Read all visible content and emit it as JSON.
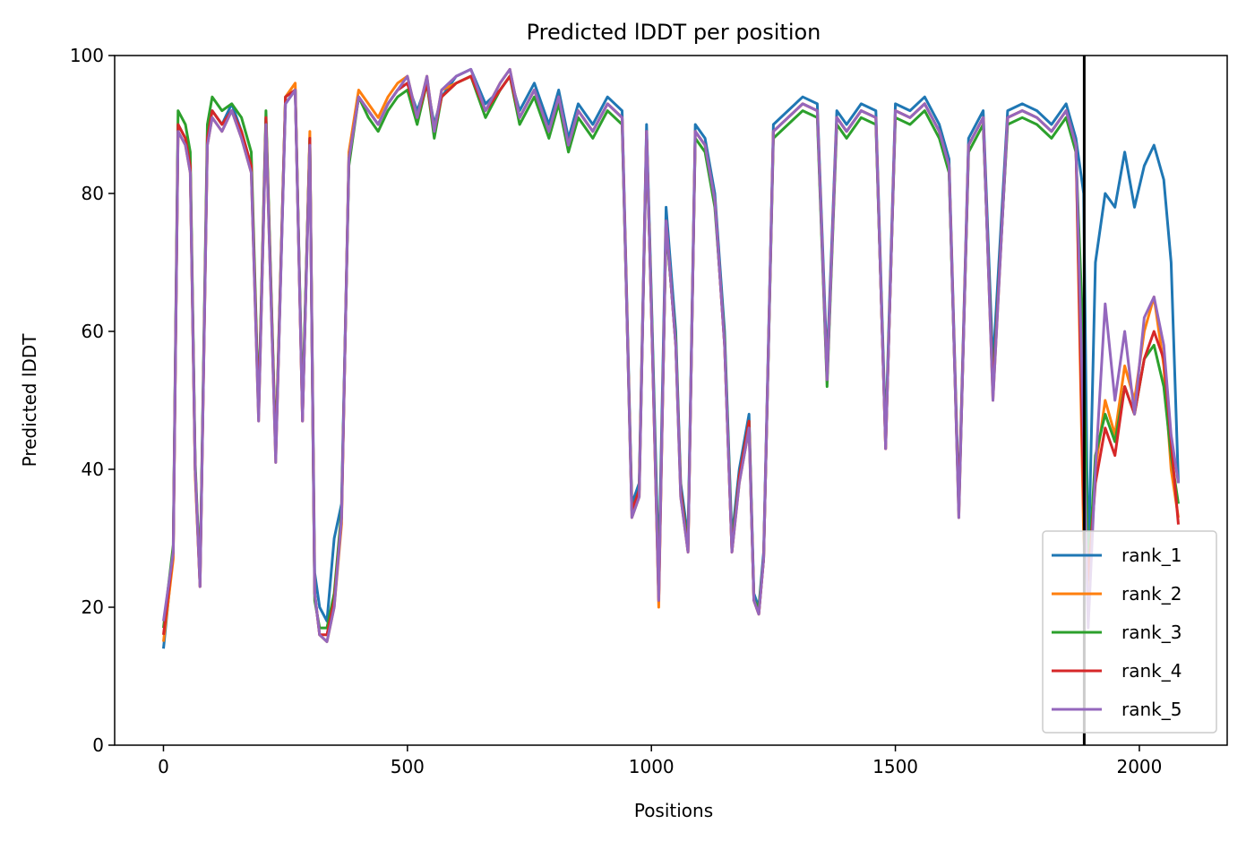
{
  "chart_data": {
    "type": "line",
    "title": "Predicted lDDT per position",
    "xlabel": "Positions",
    "ylabel": "Predicted lDDT",
    "xlim": [
      -100,
      2180
    ],
    "ylim": [
      0,
      100
    ],
    "xticks": [
      0,
      500,
      1000,
      1500,
      2000
    ],
    "yticks": [
      0,
      20,
      40,
      60,
      80,
      100
    ],
    "grid": false,
    "legend_position": "lower-right",
    "vertical_line": {
      "x": 1887,
      "color": "#000000"
    },
    "series_colors": [
      "#1f77b4",
      "#ff7f0e",
      "#2ca02c",
      "#d62728",
      "#9467bd"
    ],
    "x": [
      0,
      20,
      30,
      45,
      55,
      65,
      75,
      90,
      100,
      120,
      140,
      160,
      180,
      195,
      210,
      230,
      250,
      270,
      285,
      300,
      310,
      320,
      335,
      350,
      365,
      380,
      400,
      420,
      440,
      460,
      480,
      500,
      520,
      540,
      555,
      570,
      600,
      630,
      660,
      690,
      710,
      730,
      760,
      790,
      810,
      830,
      850,
      880,
      910,
      940,
      960,
      975,
      990,
      1000,
      1015,
      1030,
      1050,
      1060,
      1075,
      1090,
      1110,
      1130,
      1150,
      1165,
      1180,
      1200,
      1210,
      1220,
      1230,
      1250,
      1280,
      1310,
      1340,
      1360,
      1380,
      1400,
      1430,
      1460,
      1480,
      1500,
      1530,
      1560,
      1590,
      1610,
      1630,
      1650,
      1680,
      1700,
      1730,
      1760,
      1790,
      1820,
      1850,
      1870,
      1886,
      1895,
      1910,
      1930,
      1950,
      1970,
      1990,
      2010,
      2030,
      2050,
      2065,
      2080
    ],
    "series": [
      {
        "name": "rank_1",
        "values": [
          14,
          28,
          90,
          88,
          84,
          40,
          24,
          88,
          92,
          90,
          93,
          89,
          84,
          48,
          91,
          42,
          93,
          95,
          48,
          88,
          25,
          20,
          18,
          30,
          35,
          85,
          94,
          92,
          90,
          93,
          95,
          96,
          92,
          96,
          90,
          94,
          97,
          98,
          93,
          95,
          97,
          92,
          96,
          90,
          95,
          88,
          93,
          90,
          94,
          92,
          35,
          38,
          90,
          65,
          25,
          78,
          60,
          38,
          30,
          90,
          88,
          80,
          60,
          30,
          40,
          48,
          22,
          20,
          28,
          90,
          92,
          94,
          93,
          55,
          92,
          90,
          93,
          92,
          45,
          93,
          92,
          94,
          90,
          85,
          35,
          88,
          92,
          55,
          92,
          93,
          92,
          90,
          93,
          88,
          80,
          25,
          70,
          80,
          78,
          86,
          78,
          84,
          87,
          82,
          70,
          38
        ]
      },
      {
        "name": "rank_2",
        "values": [
          15,
          27,
          89,
          87,
          83,
          39,
          23,
          87,
          91,
          89,
          92,
          88,
          83,
          47,
          90,
          41,
          94,
          96,
          47,
          89,
          22,
          16,
          15,
          20,
          32,
          86,
          95,
          93,
          91,
          94,
          96,
          97,
          91,
          97,
          89,
          95,
          96,
          97,
          92,
          96,
          98,
          91,
          95,
          89,
          94,
          87,
          92,
          89,
          93,
          91,
          33,
          36,
          89,
          63,
          20,
          76,
          58,
          36,
          28,
          89,
          87,
          79,
          58,
          28,
          38,
          46,
          21,
          19,
          27,
          89,
          91,
          93,
          92,
          53,
          91,
          89,
          92,
          91,
          43,
          92,
          91,
          93,
          89,
          84,
          33,
          87,
          91,
          50,
          91,
          92,
          91,
          89,
          92,
          87,
          30,
          22,
          40,
          50,
          45,
          55,
          50,
          60,
          65,
          55,
          40,
          33
        ]
      },
      {
        "name": "rank_3",
        "values": [
          17,
          29,
          92,
          90,
          86,
          41,
          24,
          90,
          94,
          92,
          93,
          91,
          86,
          49,
          92,
          43,
          94,
          95,
          49,
          88,
          21,
          17,
          17,
          22,
          34,
          84,
          94,
          91,
          89,
          92,
          94,
          95,
          90,
          96,
          88,
          94,
          96,
          97,
          91,
          95,
          97,
          90,
          94,
          88,
          93,
          86,
          91,
          88,
          92,
          90,
          34,
          37,
          88,
          64,
          23,
          75,
          59,
          37,
          29,
          88,
          86,
          78,
          59,
          29,
          39,
          47,
          21,
          20,
          27,
          88,
          90,
          92,
          91,
          52,
          90,
          88,
          91,
          90,
          44,
          91,
          90,
          92,
          88,
          83,
          34,
          86,
          90,
          52,
          90,
          91,
          90,
          88,
          91,
          86,
          57,
          24,
          42,
          48,
          44,
          52,
          48,
          56,
          58,
          52,
          42,
          35
        ]
      },
      {
        "name": "rank_4",
        "values": [
          16,
          28,
          90,
          88,
          84,
          40,
          23,
          88,
          92,
          90,
          92,
          89,
          84,
          48,
          91,
          42,
          94,
          95,
          47,
          88,
          22,
          16,
          16,
          21,
          33,
          85,
          94,
          92,
          90,
          93,
          95,
          96,
          91,
          96,
          89,
          94,
          96,
          97,
          92,
          95,
          97,
          91,
          95,
          89,
          94,
          87,
          92,
          89,
          93,
          91,
          34,
          37,
          89,
          63,
          21,
          76,
          58,
          37,
          28,
          89,
          87,
          79,
          58,
          28,
          39,
          47,
          21,
          19,
          27,
          89,
          91,
          93,
          92,
          53,
          91,
          89,
          92,
          91,
          43,
          92,
          91,
          93,
          89,
          84,
          34,
          87,
          91,
          51,
          91,
          92,
          91,
          89,
          92,
          87,
          35,
          24,
          38,
          46,
          42,
          52,
          48,
          56,
          60,
          56,
          44,
          32
        ]
      },
      {
        "name": "rank_5",
        "values": [
          18,
          28,
          89,
          87,
          83,
          40,
          23,
          87,
          91,
          89,
          92,
          88,
          83,
          47,
          90,
          41,
          93,
          95,
          47,
          87,
          22,
          16,
          15,
          20,
          33,
          85,
          94,
          92,
          90,
          93,
          95,
          97,
          91,
          97,
          89,
          95,
          97,
          98,
          92,
          96,
          98,
          91,
          95,
          89,
          94,
          87,
          92,
          89,
          93,
          91,
          33,
          36,
          89,
          63,
          21,
          76,
          58,
          36,
          28,
          89,
          87,
          79,
          58,
          28,
          38,
          46,
          21,
          19,
          27,
          89,
          91,
          93,
          92,
          53,
          91,
          89,
          92,
          91,
          43,
          92,
          91,
          93,
          89,
          84,
          33,
          87,
          91,
          50,
          91,
          92,
          91,
          89,
          92,
          87,
          45,
          17,
          40,
          64,
          50,
          60,
          48,
          62,
          65,
          58,
          45,
          38
        ]
      }
    ]
  }
}
